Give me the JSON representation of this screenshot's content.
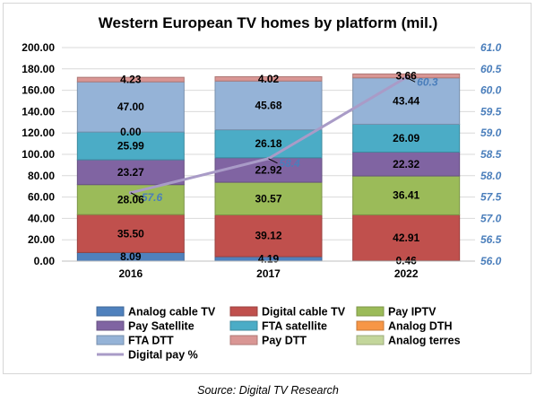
{
  "chart_data": {
    "type": "bar",
    "stacked": true,
    "title": "Western European TV homes by platform (mil.)",
    "categories": [
      "2016",
      "2017",
      "2022"
    ],
    "ylim": [
      0,
      200
    ],
    "y_ticks": [
      "0.00",
      "20.00",
      "40.00",
      "60.00",
      "80.00",
      "100.00",
      "120.00",
      "140.00",
      "160.00",
      "180.00",
      "200.00"
    ],
    "y2lim": [
      56.0,
      61.0
    ],
    "y2_ticks": [
      "56.0",
      "56.5",
      "57.0",
      "57.5",
      "58.0",
      "58.5",
      "59.0",
      "59.5",
      "60.0",
      "60.5",
      "61.0"
    ],
    "grid": true,
    "legend_position": "bottom",
    "series": [
      {
        "name": "Analog cable TV",
        "color": "#4f81bd",
        "values": [
          8.09,
          4.19,
          0.46
        ],
        "labels": [
          "8.09",
          "4.19",
          "0.46"
        ]
      },
      {
        "name": "Digital cable TV",
        "color": "#c0504d",
        "values": [
          35.5,
          39.12,
          42.91
        ],
        "labels": [
          "35.50",
          "39.12",
          "42.91"
        ]
      },
      {
        "name": "Pay IPTV",
        "color": "#9bbb59",
        "values": [
          28.06,
          30.57,
          36.41
        ],
        "labels": [
          "28.06",
          "30.57",
          "36.41"
        ]
      },
      {
        "name": "Pay Satellite",
        "color": "#8064a2",
        "values": [
          23.27,
          22.92,
          22.32
        ],
        "labels": [
          "23.27",
          "22.92",
          "22.32"
        ]
      },
      {
        "name": "FTA satellite",
        "color": "#4bacc6",
        "values": [
          25.99,
          26.18,
          26.09
        ],
        "labels": [
          "25.99",
          "26.18",
          "26.09"
        ]
      },
      {
        "name": "Analog DTH",
        "color": "#f79646",
        "values": [
          0.0,
          0.0,
          0.0
        ],
        "labels": [
          "0.00",
          "",
          ""
        ]
      },
      {
        "name": "FTA DTT",
        "color": "#95b3d7",
        "values": [
          47.0,
          45.68,
          43.44
        ],
        "labels": [
          "47.00",
          "45.68",
          "43.44"
        ]
      },
      {
        "name": "Pay DTT",
        "color": "#d99694",
        "values": [
          4.23,
          4.02,
          3.66
        ],
        "labels": [
          "4.23",
          "4.02",
          "3.66"
        ]
      },
      {
        "name": "Analog terres",
        "color": "#c3d69b",
        "values": [
          0.0,
          0.0,
          0.0
        ],
        "labels": [
          "",
          "",
          ""
        ]
      }
    ],
    "line_series": {
      "name": "Digital pay %",
      "color": "#a99bc7",
      "axis": "right",
      "values": [
        57.6,
        58.4,
        60.3
      ],
      "labels": [
        "57.6",
        "58.4",
        "60.3"
      ]
    },
    "legend": [
      {
        "name": "Analog cable TV",
        "color": "#4f81bd",
        "kind": "box"
      },
      {
        "name": "Digital cable TV",
        "color": "#c0504d",
        "kind": "box"
      },
      {
        "name": "Pay IPTV",
        "color": "#9bbb59",
        "kind": "box"
      },
      {
        "name": "Pay Satellite",
        "color": "#8064a2",
        "kind": "box"
      },
      {
        "name": "FTA satellite",
        "color": "#4bacc6",
        "kind": "box"
      },
      {
        "name": "Analog DTH",
        "color": "#f79646",
        "kind": "box"
      },
      {
        "name": "FTA DTT",
        "color": "#95b3d7",
        "kind": "box"
      },
      {
        "name": "Pay DTT",
        "color": "#d99694",
        "kind": "box"
      },
      {
        "name": "Analog terres",
        "color": "#c3d69b",
        "kind": "box"
      },
      {
        "name": "Digital pay %",
        "color": "#a99bc7",
        "kind": "line"
      }
    ],
    "source": "Source: Digital TV Research"
  }
}
